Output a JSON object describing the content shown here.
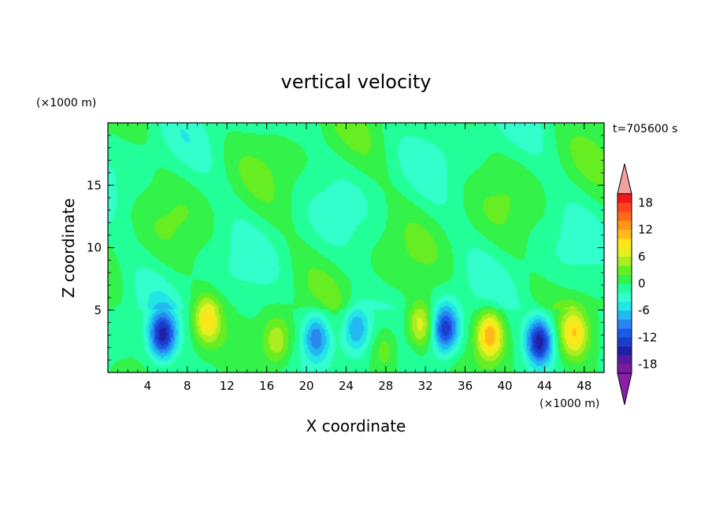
{
  "chart_data": {
    "type": "heatmap",
    "title": "vertical velocity",
    "xlabel": "X coordinate",
    "ylabel": "Z coordinate",
    "x_unit": "(×1000 m)",
    "y_unit": "(×1000 m)",
    "time_label": "t=705600 s",
    "xlim": [
      0,
      50
    ],
    "ylim": [
      0,
      20
    ],
    "x_ticks": [
      "4",
      "8",
      "12",
      "16",
      "20",
      "24",
      "28",
      "32",
      "36",
      "40",
      "44",
      "48"
    ],
    "y_ticks": [
      "5",
      "10",
      "15"
    ],
    "colorbar": {
      "levels": [
        -20,
        -18,
        -16,
        -14,
        -12,
        -10,
        -8,
        -6,
        -4,
        -2,
        0,
        2,
        4,
        6,
        8,
        10,
        12,
        14,
        16,
        18,
        20
      ],
      "tick_labels": [
        "18",
        "12",
        "6",
        "0",
        "-6",
        "-12",
        "-18"
      ],
      "colors": [
        "#7a1a9e",
        "#5a1aa0",
        "#1f1fa8",
        "#1a3cc8",
        "#1a5ae6",
        "#2a86f0",
        "#22b8f0",
        "#22e6e6",
        "#33ffcc",
        "#22ff99",
        "#33f24a",
        "#66ee22",
        "#aaee22",
        "#e6f01e",
        "#ffe619",
        "#ffbb19",
        "#ff9619",
        "#ff6a19",
        "#ff4422",
        "#ee1a1a"
      ],
      "over_color": "#f2a0a0",
      "under_color": "#8a20a8"
    },
    "features": [
      {
        "x": 5.5,
        "z": 3.0,
        "w": -14
      },
      {
        "x": 10.0,
        "z": 4.2,
        "w": 9
      },
      {
        "x": 17.0,
        "z": 2.5,
        "w": 6
      },
      {
        "x": 21.0,
        "z": 2.8,
        "w": -9
      },
      {
        "x": 25.0,
        "z": 3.5,
        "w": -8
      },
      {
        "x": 28.0,
        "z": 2.0,
        "w": 4
      },
      {
        "x": 31.5,
        "z": 3.8,
        "w": 8
      },
      {
        "x": 34.0,
        "z": 3.5,
        "w": -13
      },
      {
        "x": 38.5,
        "z": 3.0,
        "w": 12
      },
      {
        "x": 43.5,
        "z": 2.5,
        "w": -15
      },
      {
        "x": 47.0,
        "z": 3.2,
        "w": 9
      }
    ]
  }
}
